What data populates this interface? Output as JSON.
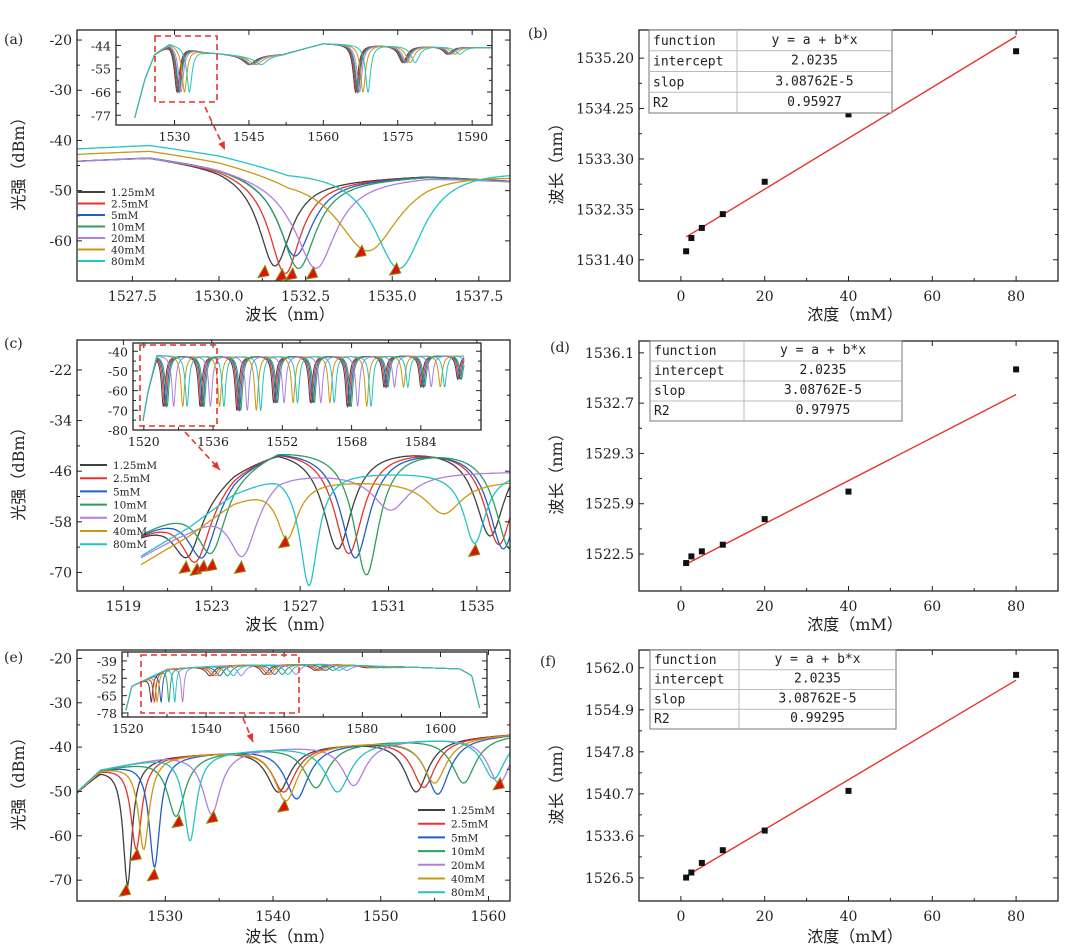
{
  "colors": {
    "series": [
      "#404040",
      "#e8332a",
      "#1f5fc8",
      "#2e9e5e",
      "#b07fe0",
      "#c89a10",
      "#22c4c4"
    ],
    "fit": "#e8332a",
    "marker": "#e01010",
    "marker_edge": "#8a8a00",
    "box": "#e8332a"
  },
  "legend_names": [
    "1.25mM",
    "2.5mM",
    "5mM",
    "10mM",
    "20mM",
    "40mM",
    "80mM"
  ],
  "chart_data": [
    {
      "id": "a",
      "type": "line",
      "panel_label": "(a)",
      "xlabel": "波长（nm）",
      "ylabel": "光强（dBm）",
      "legend_position": "left",
      "main": {
        "xlim": [
          1525.9,
          1538.4
        ],
        "ylim": [
          -68,
          -18
        ],
        "xticks": [
          1527.5,
          1530,
          1532.5,
          1535,
          1537.5
        ],
        "xtick_labels": [
          "1527.5",
          "1530.0",
          "1532.5",
          "1535.0",
          "1537.5"
        ],
        "yticks": [
          -20,
          -30,
          -40,
          -50,
          -60
        ],
        "ytick_labels": [
          "-20",
          "-30",
          "-40",
          "-50",
          "-60"
        ]
      },
      "base": [
        [
          1525.9,
          -44
        ],
        [
          1528,
          -43.2
        ],
        [
          1530,
          -45
        ],
        [
          1532,
          -48
        ],
        [
          1534,
          -47.5
        ],
        [
          1536,
          -47
        ],
        [
          1538.4,
          -48
        ]
      ],
      "series": [
        {
          "offset": 0,
          "dips": [
            [
              1531.6,
              -65,
              0.55
            ]
          ]
        },
        {
          "offset": 0,
          "dips": [
            [
              1531.9,
              -66.5,
              0.55
            ]
          ]
        },
        {
          "offset": 0,
          "dips": [
            [
              1532.2,
              -63,
              0.6
            ]
          ]
        },
        {
          "offset": 0,
          "dips": [
            [
              1532.3,
              -65.5,
              0.6
            ]
          ]
        },
        {
          "offset": 0,
          "dips": [
            [
              1532.8,
              -65.5,
              0.7
            ]
          ]
        },
        {
          "offset": 1.5,
          "dips": [
            [
              1534.3,
              -62,
              1.1
            ]
          ]
        },
        {
          "offset": 2.5,
          "dips": [
            [
              1535.2,
              -65.5,
              0.9
            ]
          ]
        }
      ],
      "markers": [
        [
          1531.3,
          -66.3
        ],
        [
          1531.8,
          -67
        ],
        [
          1532.1,
          -66.8
        ],
        [
          1532.7,
          -66.6
        ],
        [
          1534.1,
          -62.3
        ],
        [
          1535.1,
          -65.8
        ]
      ],
      "inset": {
        "xlim": [
          1518.2,
          1594
        ],
        "ylim": [
          -81.6,
          -36.7
        ],
        "xticks": [
          1530,
          1545,
          1560,
          1575,
          1590
        ],
        "xtick_labels": [
          "1530",
          "1545",
          "1560",
          "1575",
          "1590"
        ],
        "yticks": [
          -44,
          -55,
          -66,
          -77
        ],
        "ytick_labels": [
          "-44",
          "-55",
          "-66",
          "-77"
        ],
        "base": [
          [
            1522,
            -78
          ],
          [
            1524,
            -60
          ],
          [
            1526,
            -48
          ],
          [
            1529,
            -43
          ],
          [
            1536,
            -47
          ],
          [
            1545,
            -49
          ],
          [
            1552,
            -48
          ],
          [
            1560,
            -43
          ],
          [
            1594,
            -45
          ]
        ],
        "dips": [
          [
            1530.5,
            -66,
            0.6
          ],
          [
            1545,
            -53,
            1.5
          ],
          [
            1566.5,
            -66,
            0.6
          ],
          [
            1576,
            -52,
            1
          ],
          [
            1585,
            -48,
            1
          ]
        ],
        "shifts": [
          0,
          0.2,
          0.4,
          0.5,
          0.8,
          1.5,
          2.5
        ],
        "xstart": 1522
      }
    },
    {
      "id": "b",
      "type": "scatter",
      "panel_label": "(b)",
      "xlabel": "浓度（mM）",
      "ylabel": "波长（nm）",
      "xlim": [
        -10,
        90
      ],
      "ylim": [
        1531.0,
        1535.73
      ],
      "xticks": [
        0,
        20,
        40,
        60,
        80
      ],
      "xtick_labels": [
        "0",
        "20",
        "40",
        "60",
        "80"
      ],
      "yticks": [
        1531.4,
        1532.35,
        1533.3,
        1534.25,
        1535.2
      ],
      "ytick_labels": [
        "1531.40",
        "1532.35",
        "1533.30",
        "1534.25",
        "1535.20"
      ],
      "x": [
        1.25,
        2.5,
        5,
        10,
        20,
        40,
        80
      ],
      "y": [
        1531.56,
        1531.81,
        1532.0,
        1532.26,
        1532.87,
        1534.14,
        1535.33
      ],
      "fit_line": {
        "x": [
          1.25,
          80
        ],
        "y": [
          1531.83,
          1535.61
        ]
      },
      "table": [
        [
          "function",
          "y = a + b*x"
        ],
        [
          "intercept",
          "2.0235"
        ],
        [
          "slop",
          "3.08762E-5"
        ],
        [
          "R2",
          "0.95927"
        ]
      ]
    },
    {
      "id": "c",
      "type": "line",
      "panel_label": "(c)",
      "xlabel": "波长（nm）",
      "ylabel": "光强（dBm）",
      "legend_position": "left",
      "main": {
        "xlim": [
          1516.9,
          1536.5
        ],
        "ylim": [
          -74.4,
          -14.9
        ],
        "xticks": [
          1519,
          1523,
          1527,
          1531,
          1535
        ],
        "xtick_labels": [
          "1519",
          "1523",
          "1527",
          "1531",
          "1535"
        ],
        "yticks": [
          -22,
          -34,
          -46,
          -58,
          -70
        ],
        "ytick_labels": [
          "-22",
          "-34",
          "-46",
          "-58",
          "-70"
        ]
      },
      "xstart": 1519.8,
      "base": [
        [
          1519.8,
          -60
        ],
        [
          1522,
          -53
        ],
        [
          1524,
          -45
        ],
        [
          1526,
          -40
        ],
        [
          1536.5,
          -40
        ]
      ],
      "series": [
        {
          "offset": 0,
          "dips": [
            [
              1521.9,
              -66,
              0.8
            ],
            [
              1528.7,
              -64,
              0.8
            ],
            [
              1535.6,
              -61,
              0.8
            ]
          ]
        },
        {
          "offset": 0,
          "dips": [
            [
              1522.3,
              -67,
              0.8
            ],
            [
              1529.2,
              -65,
              0.8
            ],
            [
              1536.0,
              -63,
              0.8
            ]
          ]
        },
        {
          "offset": 0,
          "dips": [
            [
              1522.6,
              -66,
              0.8
            ],
            [
              1529.5,
              -66,
              0.8
            ],
            [
              1536.2,
              -64,
              0.8
            ]
          ]
        },
        {
          "offset": 0,
          "dips": [
            [
              1523.0,
              -65,
              0.8
            ],
            [
              1530.0,
              -70,
              0.7
            ],
            [
              1536.5,
              -64,
              0.8
            ]
          ]
        },
        {
          "offset": -6,
          "dips": [
            [
              1524.4,
              -66,
              0.8
            ],
            [
              1531.1,
              -55,
              1.0
            ]
          ]
        },
        {
          "offset": -8,
          "dips": [
            [
              1526.4,
              -62,
              0.6
            ],
            [
              1533.5,
              -56,
              1.0
            ]
          ]
        },
        {
          "offset": -6,
          "dips": [
            [
              1527.4,
              -73,
              0.5
            ],
            [
              1534.9,
              -63,
              0.6
            ]
          ]
        }
      ],
      "markers": [
        [
          1521.8,
          -69
        ],
        [
          1522.3,
          -69.5
        ],
        [
          1522.6,
          -68.8
        ],
        [
          1523.0,
          -68.5
        ],
        [
          1524.3,
          -69
        ],
        [
          1526.3,
          -63
        ],
        [
          1534.9,
          -65
        ]
      ],
      "inset": {
        "xlim": [
          1517.5,
          1597.9
        ],
        "ylim": [
          -80,
          -35.8
        ],
        "xticks": [
          1520,
          1536,
          1552,
          1568,
          1584
        ],
        "xtick_labels": [
          "1520",
          "1536",
          "1552",
          "1568",
          "1584"
        ],
        "yticks": [
          -40,
          -50,
          -60,
          -70,
          -80
        ],
        "ytick_labels": [
          "-40",
          "-50",
          "-60",
          "-70",
          "-80"
        ],
        "base": [
          [
            1519.8,
            -75
          ],
          [
            1521,
            -60
          ],
          [
            1523,
            -42
          ],
          [
            1594,
            -42
          ]
        ],
        "dips": [
          [
            1524.5,
            -68,
            0.5
          ],
          [
            1533,
            -68,
            0.5
          ],
          [
            1541.5,
            -70,
            0.5
          ],
          [
            1550,
            -66,
            0.5
          ],
          [
            1558.5,
            -66,
            0.5
          ],
          [
            1567,
            -68,
            0.5
          ],
          [
            1575.5,
            -58,
            0.5
          ],
          [
            1584,
            -58,
            0.5
          ],
          [
            1592.5,
            -54,
            0.5
          ]
        ],
        "shifts": [
          0,
          0.3,
          0.6,
          0.9,
          2.4,
          4.5,
          5.5
        ],
        "xstart": 1519.8,
        "xend": 1594
      }
    },
    {
      "id": "d",
      "type": "scatter",
      "panel_label": "(d)",
      "xlabel": "浓度（mM）",
      "ylabel": "波长（nm）",
      "xlim": [
        -10,
        90
      ],
      "ylim": [
        1520.0,
        1536.9
      ],
      "xticks": [
        0,
        20,
        40,
        60,
        80
      ],
      "xtick_labels": [
        "0",
        "20",
        "40",
        "60",
        "80"
      ],
      "yticks": [
        1522.5,
        1525.9,
        1529.3,
        1532.7,
        1536.1
      ],
      "ytick_labels": [
        "1522.5",
        "1525.9",
        "1529.3",
        "1532.7",
        "1536.1"
      ],
      "x": [
        1.25,
        2.5,
        5,
        10,
        20,
        40,
        80
      ],
      "y": [
        1521.89,
        1522.34,
        1522.68,
        1523.13,
        1524.86,
        1526.72,
        1534.98
      ],
      "fit_line": {
        "x": [
          1.25,
          80
        ],
        "y": [
          1521.82,
          1533.28
        ]
      },
      "table": [
        [
          "function",
          "y = a + b*x"
        ],
        [
          "intercept",
          "2.0235"
        ],
        [
          "slop",
          "3.08762E-5"
        ],
        [
          "R2",
          "0.97975"
        ]
      ]
    },
    {
      "id": "e",
      "type": "line",
      "panel_label": "(e)",
      "xlabel": "波长（nm）",
      "ylabel": "光强（dBm）",
      "legend_position": "bottom-right",
      "main": {
        "xlim": [
          1521.8,
          1562.0
        ],
        "ylim": [
          -74.7,
          -18.1
        ],
        "xticks": [
          1530,
          1540,
          1550,
          1560
        ],
        "xtick_labels": [
          "1530",
          "1540",
          "1550",
          "1560"
        ],
        "yticks": [
          -20,
          -30,
          -40,
          -50,
          -60,
          -70
        ],
        "ytick_labels": [
          "-20",
          "-30",
          "-40",
          "-50",
          "-60",
          "-70"
        ]
      },
      "base": [
        [
          1521.8,
          -50
        ],
        [
          1524,
          -45
        ],
        [
          1530,
          -42
        ],
        [
          1540,
          -40
        ],
        [
          1550,
          -38.5
        ],
        [
          1562,
          -37
        ]
      ],
      "series": [
        {
          "offset": 0,
          "dips": [
            [
              1526.5,
              -71,
              0.5
            ],
            [
              1540.5,
              -50,
              1.3
            ],
            [
              1553.3,
              -50,
              1.3
            ]
          ]
        },
        {
          "offset": 0,
          "dips": [
            [
              1527.3,
              -63,
              0.6
            ],
            [
              1541.0,
              -50,
              1.3
            ],
            [
              1554.0,
              -49,
              1.3
            ]
          ]
        },
        {
          "offset": 0,
          "dips": [
            [
              1529.0,
              -67,
              0.6
            ],
            [
              1542.2,
              -51.5,
              1.3
            ],
            [
              1555.3,
              -50.5,
              1.3
            ]
          ]
        },
        {
          "offset": 0,
          "dips": [
            [
              1531.0,
              -55.5,
              1.0
            ],
            [
              1544.0,
              -49,
              1.3
            ],
            [
              1557.7,
              -48,
              1.3
            ]
          ]
        },
        {
          "offset": 0,
          "dips": [
            [
              1534.3,
              -55,
              1.0
            ],
            [
              1547.5,
              -48.5,
              1.3
            ],
            [
              1561.0,
              -48,
              1.3
            ]
          ]
        },
        {
          "offset": 0,
          "dips": [
            [
              1528.0,
              -63,
              0.6
            ],
            [
              1541.2,
              -52,
              1.3
            ],
            [
              1555.0,
              -48,
              1.3
            ]
          ]
        },
        {
          "offset": 0,
          "dips": [
            [
              1532.3,
              -61,
              0.7
            ],
            [
              1546.0,
              -50,
              1.4
            ],
            [
              1560.5,
              -47,
              1.3
            ]
          ]
        }
      ],
      "markers": [
        [
          1526.3,
          -72.5
        ],
        [
          1527.3,
          -64.5
        ],
        [
          1528.9,
          -69
        ],
        [
          1531.2,
          -57
        ],
        [
          1534.4,
          -56
        ],
        [
          1541,
          -53.5
        ],
        [
          1561,
          -48.5
        ]
      ],
      "inset": {
        "xlim": [
          1518.5,
          1611.9
        ],
        "ylim": [
          -81,
          -32.3
        ],
        "xticks": [
          1520,
          1540,
          1560,
          1580,
          1600
        ],
        "xtick_labels": [
          "1520",
          "1540",
          "1560",
          "1580",
          "1600"
        ],
        "yticks": [
          -39,
          -52,
          -65,
          -78
        ],
        "ytick_labels": [
          "-39",
          "-52",
          "-65",
          "-78"
        ],
        "base": [
          [
            1519.5,
            -76
          ],
          [
            1521,
            -58
          ],
          [
            1530,
            -45
          ],
          [
            1545,
            -42
          ],
          [
            1570,
            -41
          ],
          [
            1605,
            -45
          ],
          [
            1608,
            -50
          ],
          [
            1610,
            -74
          ]
        ],
        "dips": [
          [
            1526,
            -70,
            0.4
          ],
          [
            1541,
            -50,
            1.2
          ],
          [
            1555,
            -49,
            1.2
          ],
          [
            1568,
            -46,
            1.5
          ],
          [
            1581,
            -44,
            2
          ]
        ],
        "shifts": [
          0,
          0.8,
          2.5,
          4.5,
          8,
          1.5,
          6
        ],
        "xstart": 1519.5,
        "xend": 1610
      }
    },
    {
      "id": "f",
      "type": "scatter",
      "panel_label": "(f)",
      "xlabel": "浓度（mM）",
      "ylabel": "波长（nm）",
      "xlim": [
        -10,
        90
      ],
      "ylim": [
        1522.6,
        1565.0
      ],
      "xticks": [
        0,
        20,
        40,
        60,
        80
      ],
      "xtick_labels": [
        "0",
        "20",
        "40",
        "60",
        "80"
      ],
      "yticks": [
        1526.5,
        1533.6,
        1540.7,
        1547.8,
        1554.9,
        1562.0
      ],
      "ytick_labels": [
        "1526.5",
        "1533.6",
        "1540.7",
        "1547.8",
        "1554.9",
        "1562.0"
      ],
      "x": [
        1.25,
        2.5,
        5,
        10,
        20,
        40,
        80
      ],
      "y": [
        1526.56,
        1527.41,
        1529.03,
        1531.18,
        1534.5,
        1541.2,
        1560.8
      ],
      "fit_line": {
        "x": [
          1.25,
          80
        ],
        "y": [
          1526.8,
          1559.9
        ]
      },
      "table": [
        [
          "function",
          "y = a + b*x"
        ],
        [
          "intercept",
          "2.0235"
        ],
        [
          "slop",
          "3.08762E-5"
        ],
        [
          "R2",
          "0.99295"
        ]
      ]
    }
  ]
}
